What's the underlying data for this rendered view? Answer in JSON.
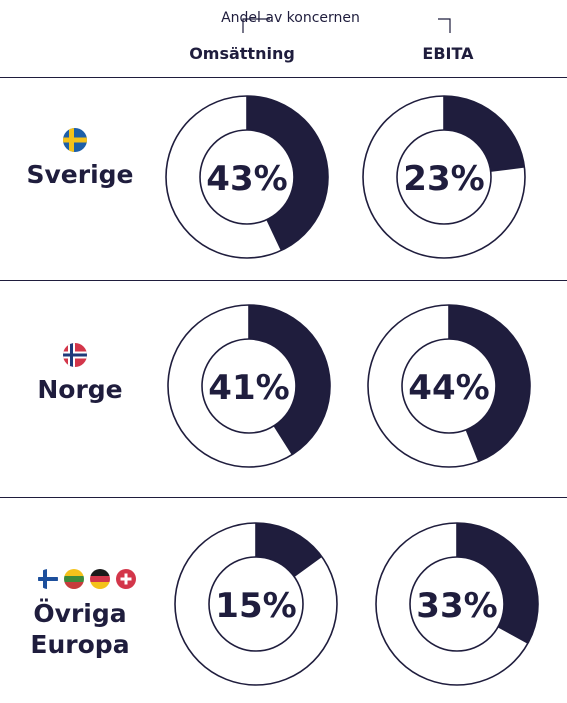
{
  "header": {
    "group_label": "Andel av koncernen",
    "col_revenue": "Omsättning",
    "col_ebita": "EBITA"
  },
  "colors": {
    "dark": "#1f1d3d",
    "light": "#ffffff"
  },
  "chart_data": {
    "type": "pie",
    "style": "donut",
    "metrics": [
      "Omsättning",
      "EBITA"
    ],
    "regions": [
      {
        "name": "Sverige",
        "flag_icons": [
          "flag-sweden-icon"
        ],
        "values": [
          43,
          23
        ],
        "labels": [
          "43%",
          "23%"
        ]
      },
      {
        "name": "Norge",
        "flag_icons": [
          "flag-norway-icon"
        ],
        "values": [
          41,
          44
        ],
        "labels": [
          "41%",
          "44%"
        ]
      },
      {
        "name": "Övriga Europa",
        "name_lines": [
          "Övriga",
          "Europa"
        ],
        "flag_icons": [
          "flag-finland-icon",
          "flag-lithuania-icon",
          "flag-germany-icon",
          "flag-switzerland-icon"
        ],
        "values": [
          15,
          33
        ],
        "labels": [
          "15%",
          "33%"
        ]
      }
    ]
  }
}
